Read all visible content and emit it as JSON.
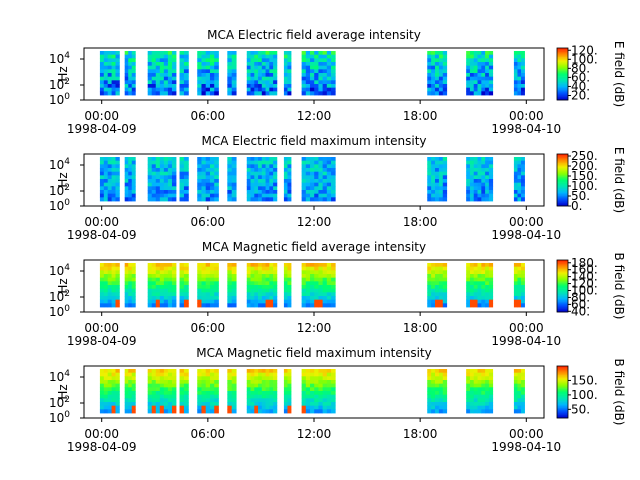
{
  "colors": {
    "background": "#ffffff",
    "axis": "#000000",
    "colormap": [
      "#0000c8",
      "#0050ff",
      "#00b4ff",
      "#00e6b4",
      "#00ff6e",
      "#8cff00",
      "#f0f000",
      "#ff8c00",
      "#ff1e00"
    ]
  },
  "x_ticks": [
    "00:00",
    "06:00",
    "12:00",
    "18:00",
    "00:00"
  ],
  "x_ticks_hours": [
    0,
    6,
    12,
    18,
    24
  ],
  "x_date_labels": [
    {
      "hour": 0,
      "text": "1998-04-09"
    },
    {
      "hour": 24,
      "text": "1998-04-10"
    }
  ],
  "chart_data": [
    {
      "type": "heatmap",
      "title": "MCA  Electric field average intensity",
      "ylabel": "Hz",
      "y_scale": "log",
      "y_ticks": [
        {
          "base": "10",
          "exp": "0"
        },
        {
          "base": "10",
          "exp": "2"
        },
        {
          "base": "10",
          "exp": "4"
        }
      ],
      "colorbar": {
        "label": "E field (dB)",
        "ticks": [
          "20.",
          "40.",
          "60.",
          "80.",
          "100.",
          "120."
        ],
        "range": [
          10,
          125
        ]
      },
      "x_range_hours": [
        -1,
        25
      ]
    },
    {
      "type": "heatmap",
      "title": "MCA  Electric field maximum intensity",
      "ylabel": "Hz",
      "y_scale": "log",
      "y_ticks": [
        {
          "base": "10",
          "exp": "0"
        },
        {
          "base": "10",
          "exp": "2"
        },
        {
          "base": "10",
          "exp": "4"
        }
      ],
      "colorbar": {
        "label": "E field (dB)",
        "ticks": [
          "0.",
          "50.",
          "100.",
          "150.",
          "200.",
          "250."
        ],
        "range": [
          0,
          260
        ]
      },
      "x_range_hours": [
        -1,
        25
      ]
    },
    {
      "type": "heatmap",
      "title": "MCA  Magnetic field average intensity",
      "ylabel": "Hz",
      "y_scale": "log",
      "y_ticks": [
        {
          "base": "10",
          "exp": "0"
        },
        {
          "base": "10",
          "exp": "2"
        },
        {
          "base": "10",
          "exp": "4"
        }
      ],
      "colorbar": {
        "label": "B field (dB)",
        "ticks": [
          "40.",
          "60.",
          "80.",
          "100.",
          "120.",
          "140.",
          "160.",
          "180."
        ],
        "range": [
          38,
          188
        ]
      },
      "x_range_hours": [
        -1,
        25
      ]
    },
    {
      "type": "heatmap",
      "title": "MCA  Magnetic field maximum intensity",
      "ylabel": "Hz",
      "y_scale": "log",
      "y_ticks": [
        {
          "base": "10",
          "exp": "0"
        },
        {
          "base": "10",
          "exp": "2"
        },
        {
          "base": "10",
          "exp": "4"
        }
      ],
      "colorbar": {
        "label": "B field (dB)",
        "ticks": [
          "50.",
          "100.",
          "150."
        ],
        "range": [
          20,
          200
        ]
      },
      "x_range_hours": [
        -1,
        25
      ]
    }
  ],
  "data_segments_hours": [
    [
      -0.1,
      1.0
    ],
    [
      1.3,
      1.9
    ],
    [
      2.6,
      4.2
    ],
    [
      4.4,
      4.9
    ],
    [
      5.4,
      6.6
    ],
    [
      7.1,
      7.6
    ],
    [
      8.2,
      9.9
    ],
    [
      10.3,
      10.7
    ],
    [
      11.3,
      13.2
    ],
    [
      18.4,
      19.5
    ],
    [
      20.6,
      22.1
    ],
    [
      23.3,
      23.9
    ]
  ]
}
